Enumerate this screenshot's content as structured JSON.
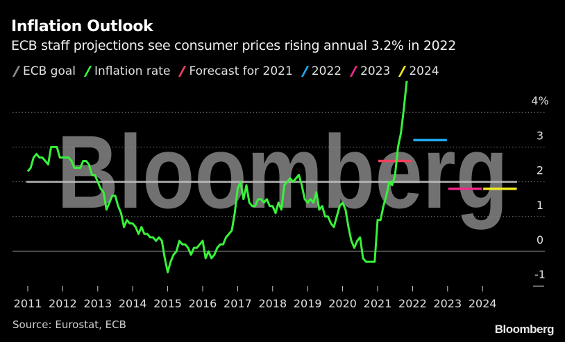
{
  "title": "Inflation Outlook",
  "subtitle": "ECB staff projections see consumer prices rising annual 3.2% in 2022",
  "source": "Source: Eurostat, ECB",
  "brand": "Bloomberg",
  "watermark": "Bloomberg",
  "chart_data": {
    "type": "line",
    "title": "Inflation Outlook",
    "ylim": [
      -1,
      4.9
    ],
    "y_ticks": [
      "4%",
      "3",
      "2",
      "1",
      "0",
      "-1"
    ],
    "y_tick_values": [
      4,
      3,
      2,
      1,
      0,
      -1
    ],
    "x_ticks": [
      "2011",
      "2012",
      "2013",
      "2014",
      "2015",
      "2016",
      "2017",
      "2018",
      "2019",
      "2020",
      "2021",
      "2022",
      "2023",
      "2024"
    ],
    "grid": true,
    "legend_position": "top-left",
    "legend": [
      {
        "name": "ECB goal",
        "color": "#8c8c8c"
      },
      {
        "name": "Inflation rate",
        "color": "#39f23a"
      },
      {
        "name": "Forecast for 2021",
        "color": "#f2405e"
      },
      {
        "name": "2022",
        "color": "#1ea8f2"
      },
      {
        "name": "2023",
        "color": "#f0288a"
      },
      {
        "name": "2024",
        "color": "#f2ea25"
      }
    ],
    "ecb_goal": 2.0,
    "inflation_rate": {
      "start": "2011-01",
      "frequency": "monthly",
      "values": [
        2.3,
        2.4,
        2.7,
        2.8,
        2.7,
        2.7,
        2.6,
        2.5,
        3.0,
        3.0,
        3.0,
        2.7,
        2.7,
        2.7,
        2.7,
        2.6,
        2.4,
        2.4,
        2.4,
        2.6,
        2.6,
        2.5,
        2.2,
        2.2,
        2.0,
        1.8,
        1.7,
        1.2,
        1.4,
        1.6,
        1.6,
        1.3,
        1.1,
        0.7,
        0.9,
        0.8,
        0.8,
        0.7,
        0.5,
        0.7,
        0.5,
        0.5,
        0.4,
        0.4,
        0.3,
        0.4,
        0.3,
        -0.2,
        -0.6,
        -0.3,
        -0.1,
        0.0,
        0.3,
        0.2,
        0.2,
        0.1,
        -0.1,
        0.1,
        0.1,
        0.2,
        0.3,
        -0.2,
        0.0,
        -0.2,
        -0.1,
        0.1,
        0.2,
        0.2,
        0.4,
        0.5,
        0.6,
        1.1,
        1.8,
        2.0,
        1.5,
        1.9,
        1.4,
        1.3,
        1.3,
        1.5,
        1.5,
        1.4,
        1.5,
        1.3,
        1.3,
        1.1,
        1.4,
        1.2,
        1.9,
        2.0,
        2.1,
        2.0,
        2.1,
        2.2,
        1.9,
        1.5,
        1.4,
        1.5,
        1.4,
        1.7,
        1.2,
        1.3,
        1.0,
        1.0,
        0.8,
        0.7,
        1.0,
        1.3,
        1.4,
        1.2,
        0.7,
        0.3,
        0.1,
        0.3,
        0.4,
        -0.2,
        -0.3,
        -0.3,
        -0.3,
        -0.3,
        0.9,
        0.9,
        1.3,
        1.6,
        2.0,
        1.9,
        2.2,
        3.0,
        3.4,
        4.1,
        4.9
      ]
    },
    "forecasts": [
      {
        "name": "Forecast for 2021",
        "year": 2021,
        "value": 2.6,
        "color": "#f2405e"
      },
      {
        "name": "2022",
        "year": 2022,
        "value": 3.2,
        "color": "#1ea8f2"
      },
      {
        "name": "2023",
        "year": 2023,
        "value": 1.8,
        "color": "#f0288a"
      },
      {
        "name": "2024",
        "year": 2024,
        "value": 1.8,
        "color": "#f2ea25"
      }
    ]
  }
}
